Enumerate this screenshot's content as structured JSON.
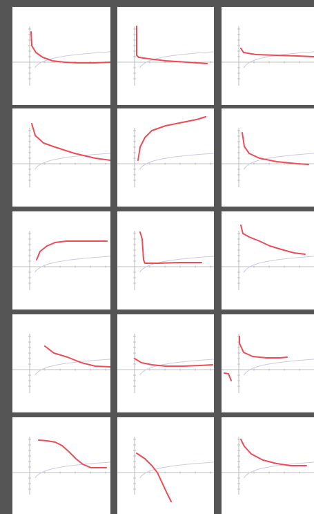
{
  "colors": {
    "background": "#555555",
    "panel": "#ffffff",
    "axis": "#aaaaaa",
    "reference_curve": "#c9c9e6",
    "drawn_curve": "#f04a55"
  },
  "grid": {
    "rows": 5,
    "columns": 3
  },
  "panels": [
    {
      "row": 0,
      "col": 0
    },
    {
      "row": 0,
      "col": 1
    },
    {
      "row": 0,
      "col": 2
    },
    {
      "row": 1,
      "col": 0
    },
    {
      "row": 1,
      "col": 1
    },
    {
      "row": 1,
      "col": 2
    },
    {
      "row": 2,
      "col": 0
    },
    {
      "row": 2,
      "col": 1
    },
    {
      "row": 2,
      "col": 2
    },
    {
      "row": 3,
      "col": 0
    },
    {
      "row": 3,
      "col": 1
    },
    {
      "row": 3,
      "col": 2
    },
    {
      "row": 4,
      "col": 0
    },
    {
      "row": 4,
      "col": 1
    },
    {
      "row": 4,
      "col": 2
    }
  ]
}
